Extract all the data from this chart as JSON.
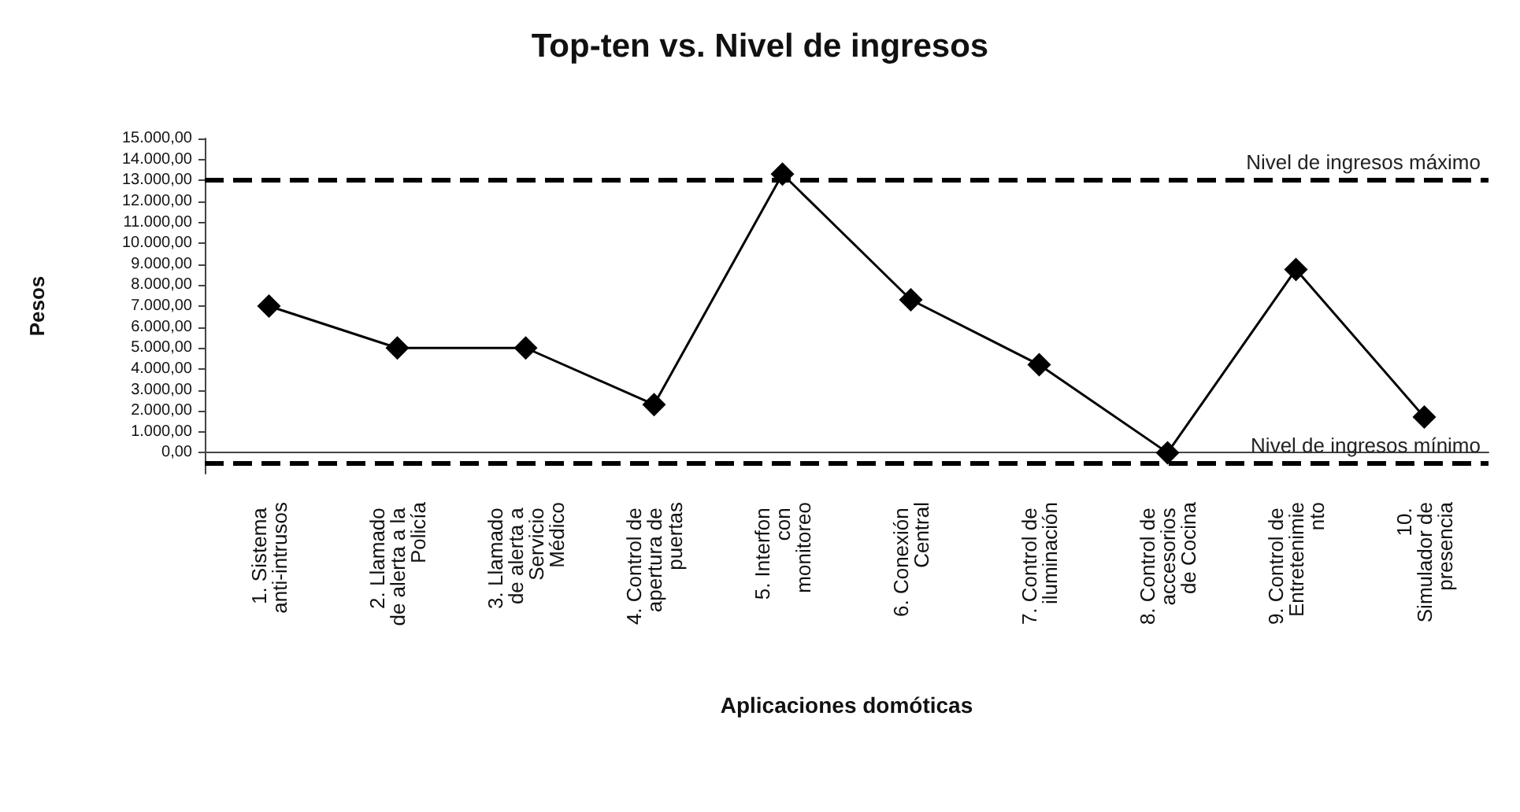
{
  "chart_data": {
    "type": "line",
    "title": "Top-ten vs. Nivel de ingresos",
    "xlabel": "Aplicaciones domóticas",
    "ylabel": "Pesos",
    "categories": [
      "1. Sistema anti-intrusos",
      "2. Llamado de alerta a la Policía",
      "3. Llamado de alerta a Servicio Médico",
      "4. Control de apertura de puertas",
      "5. Interfon con monitoreo",
      "6. Conexión Central",
      "7. Control de iluminación",
      "8. Control de accesorios de Cocina",
      "9. Control de Entretenimiento",
      "10. Simulador de presencia"
    ],
    "series": [
      {
        "color": "#000000",
        "values": [
          7000,
          5000,
          5000,
          2300,
          13300,
          7300,
          4200,
          0,
          8750,
          1700
        ]
      }
    ],
    "ylim": [
      -1000,
      15000
    ],
    "yticks": [
      {
        "value": 0,
        "label": "0,00"
      },
      {
        "value": 1000,
        "label": "1.000,00"
      },
      {
        "value": 2000,
        "label": "2.000,00"
      },
      {
        "value": 3000,
        "label": "3.000,00"
      },
      {
        "value": 4000,
        "label": "4.000,00"
      },
      {
        "value": 5000,
        "label": "5.000,00"
      },
      {
        "value": 6000,
        "label": "6.000,00"
      },
      {
        "value": 7000,
        "label": "7.000,00"
      },
      {
        "value": 8000,
        "label": "8.000,00"
      },
      {
        "value": 9000,
        "label": "9.000,00"
      },
      {
        "value": 10000,
        "label": "10.000,00"
      },
      {
        "value": 11000,
        "label": "11.000,00"
      },
      {
        "value": 12000,
        "label": "12.000,00"
      },
      {
        "value": 13000,
        "label": "13.000,00"
      },
      {
        "value": 14000,
        "label": "14.000,00"
      },
      {
        "value": 15000,
        "label": "15.000,00"
      }
    ],
    "ref_lines": [
      {
        "axis": "y",
        "value": 13000,
        "label": "Nivel de ingresos máximo",
        "color": "#000000",
        "line_style": "dashed"
      },
      {
        "axis": "y",
        "value": -500,
        "label": "Nivel de ingresos mínimo",
        "color": "#000000",
        "line_style": "dashed"
      }
    ],
    "marker": "diamond",
    "line_style": "solid"
  }
}
